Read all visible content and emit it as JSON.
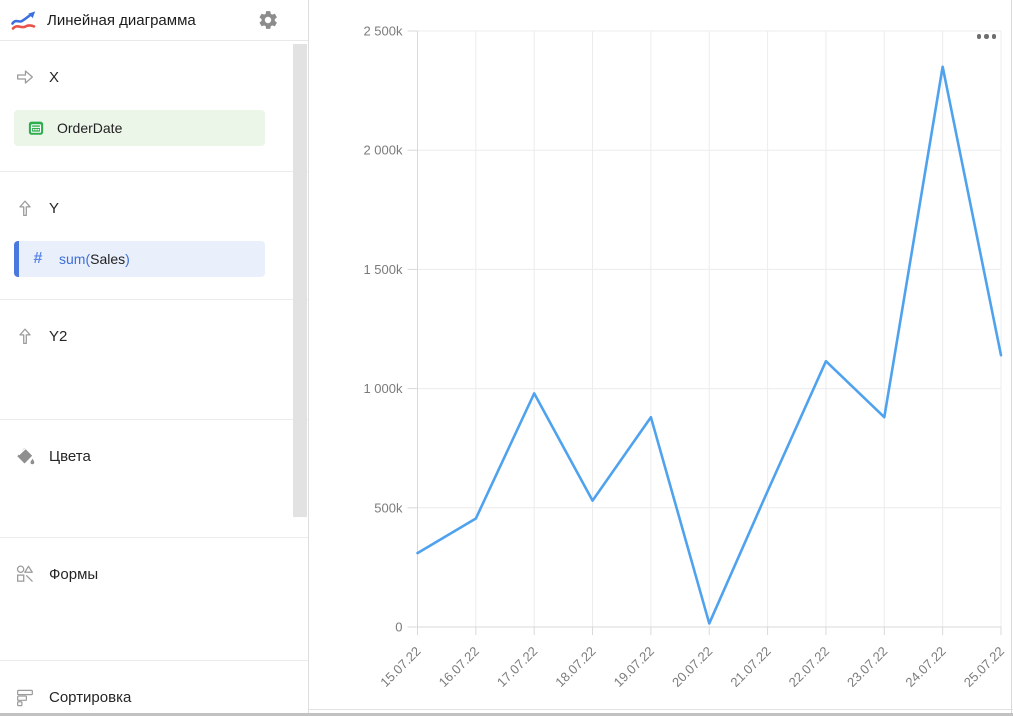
{
  "header": {
    "title": "Линейная диаграмма"
  },
  "sidebar": {
    "sections": {
      "x": {
        "label": "X"
      },
      "y": {
        "label": "Y"
      },
      "y2": {
        "label": "Y2"
      },
      "colors": {
        "label": "Цвета"
      },
      "shapes": {
        "label": "Формы"
      },
      "sorting": {
        "label": "Сортировка"
      }
    },
    "fields": {
      "order_date": {
        "name": "OrderDate",
        "type": "date"
      },
      "sales": {
        "formula_prefix": "sum(",
        "name": "Sales",
        "formula_suffix": ")",
        "icon_glyph": "#",
        "type": "number"
      }
    }
  },
  "icons": {
    "logo": "line-chart-icon",
    "settings": "gear-icon",
    "x_section": "arrow-right-icon",
    "y_section": "arrow-up-icon",
    "colors_section": "paint-bucket-icon",
    "shapes_section": "shapes-icon",
    "sorting_section": "sort-bars-icon",
    "order_date_field": "calendar-icon",
    "chart_menu": "ellipsis-icon"
  },
  "chart_data": {
    "type": "line",
    "title": "",
    "xlabel": "",
    "ylabel": "",
    "categories": [
      "15.07.22",
      "16.07.22",
      "17.07.22",
      "18.07.22",
      "19.07.22",
      "20.07.22",
      "21.07.22",
      "22.07.22",
      "23.07.22",
      "24.07.22",
      "25.07.22"
    ],
    "series": [
      {
        "name": "sum(Sales)",
        "values": [
          310000,
          455000,
          980000,
          530000,
          880000,
          15000,
          570000,
          1115000,
          880000,
          2350000,
          1140000
        ]
      }
    ],
    "ylim": [
      0,
      2500000
    ],
    "y_ticks": [
      {
        "value": 0,
        "label": "0"
      },
      {
        "value": 500000,
        "label": "500k"
      },
      {
        "value": 1000000,
        "label": "1 000k"
      },
      {
        "value": 1500000,
        "label": "1 500k"
      },
      {
        "value": 2000000,
        "label": "2 000k"
      },
      {
        "value": 2500000,
        "label": "2 500k"
      }
    ],
    "grid": true,
    "legend": false,
    "line_color": "#4fa2ee"
  },
  "colors": {
    "accent_blue": "#4fa2ee",
    "field_green_bg": "#ebf6e9",
    "field_green_icon": "#2fae50",
    "field_blue_bg": "#e9effb",
    "field_blue_accent": "#4a79dd",
    "formula_text": "#3d6fd8",
    "gridline": "#ececec",
    "axis": "#d9d9d9"
  }
}
